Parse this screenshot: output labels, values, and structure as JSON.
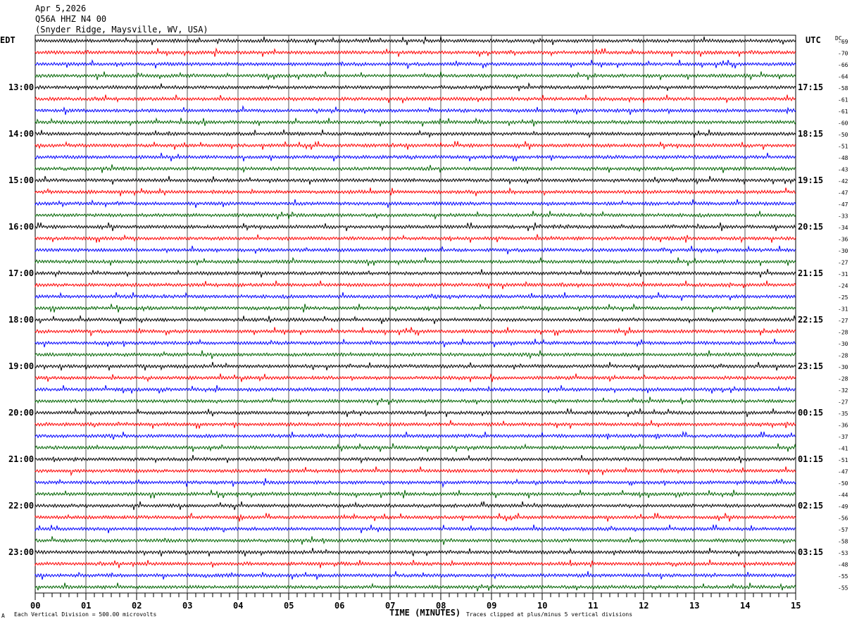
{
  "header": {
    "date": "Apr 5,2026",
    "channel": "Q56A HHZ N4 00",
    "location": "(Snyder Ridge, Maysville, WV, USA)"
  },
  "left_tz": "EDT",
  "right_tz": "UTC",
  "dc_label": "DC",
  "footer": {
    "scale": "Each Vertical Division =  500.00 microvolts",
    "xlabel": "TIME (MINUTES)",
    "clip_note": "Traces clipped at plus/minus 5 vertical divisions",
    "corner_mark": "A"
  },
  "chart_data": {
    "type": "line",
    "title": "Q56A HHZ N4 00 helicorder",
    "xlabel": "TIME (MINUTES)",
    "xlim": [
      0,
      15
    ],
    "x_ticks": [
      "00",
      "01",
      "02",
      "03",
      "04",
      "05",
      "06",
      "07",
      "08",
      "09",
      "10",
      "11",
      "12",
      "13",
      "14",
      "15"
    ],
    "left_hour_labels": [
      "13:00",
      "14:00",
      "15:00",
      "16:00",
      "17:00",
      "18:00",
      "19:00",
      "20:00",
      "21:00",
      "22:00",
      "23:00"
    ],
    "right_hour_labels": [
      "17:15",
      "18:15",
      "19:15",
      "20:15",
      "21:15",
      "22:15",
      "23:15",
      "00:15",
      "01:15",
      "02:15",
      "03:15"
    ],
    "trace_colors": [
      "#000000",
      "#ff0000",
      "#0000ff",
      "#006400"
    ],
    "dc_offsets": [
      "-69",
      "-70",
      "-66",
      "-64",
      "-58",
      "-61",
      "-61",
      "-60",
      "-50",
      "-51",
      "-48",
      "-43",
      "-42",
      "-47",
      "-47",
      "-33",
      "-34",
      "-36",
      "-30",
      "-27",
      "-31",
      "-24",
      "-25",
      "-31",
      "-27",
      "-28",
      "-30",
      "-28",
      "-30",
      "-28",
      "-32",
      "-27",
      "-35",
      "-36",
      "-37",
      "-41",
      "-51",
      "-47",
      "-50",
      "-44",
      "-49",
      "-56",
      "-57",
      "-58",
      "-53",
      "-48",
      "-55",
      "-55"
    ],
    "grid": true
  }
}
